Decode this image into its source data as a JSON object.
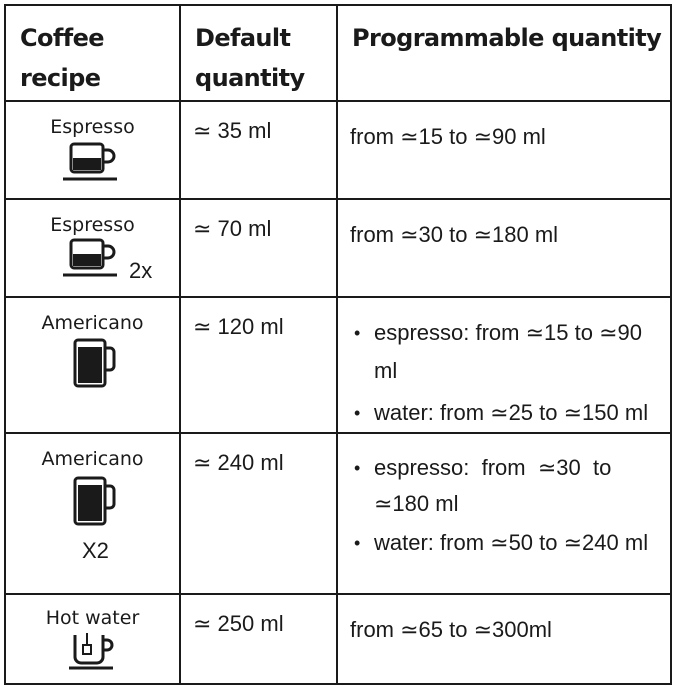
{
  "table": {
    "headers": {
      "recipe": [
        "Coffee",
        "recipe"
      ],
      "default": [
        "Default",
        "quantity"
      ],
      "programmable": "Programmable quantity"
    },
    "rows": [
      {
        "recipe": "Espresso",
        "icon": "espresso-cup-icon",
        "default": "≃ 35 ml",
        "programmable": "from ≃15 to ≃90 ml"
      },
      {
        "recipe": "Espresso",
        "icon": "espresso-cup-icon",
        "multiplier": "2x",
        "default": "≃ 70 ml",
        "programmable": "from ≃30 to ≃180 ml"
      },
      {
        "recipe": "Americano",
        "icon": "mug-icon",
        "default": "≃ 120 ml",
        "programmable_list": [
          "espresso: from ≃15 to ≃90 ml",
          "water: from ≃25 to ≃150 ml"
        ]
      },
      {
        "recipe": "Americano",
        "icon": "mug-icon",
        "multiplier": "X2",
        "default": "≃ 240 ml",
        "programmable_list": [
          "espresso:  from  ≃30  to  ≃180 ml",
          "water: from ≃50 to ≃240 ml"
        ]
      },
      {
        "recipe": "Hot water",
        "icon": "tea-cup-icon",
        "default": "≃ 250 ml",
        "programmable": "from ≃65 to ≃300ml"
      }
    ],
    "bullet": "•"
  }
}
